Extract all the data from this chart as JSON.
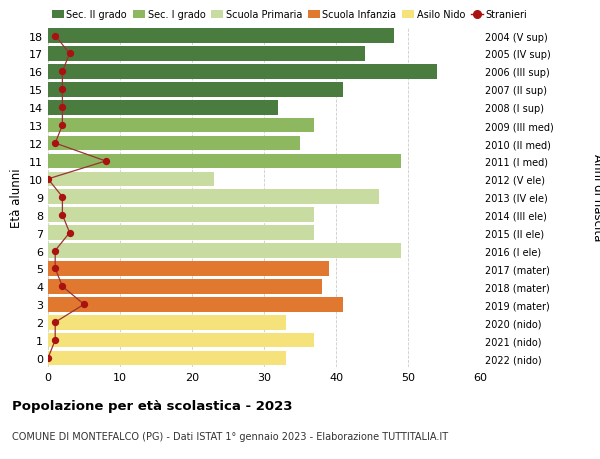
{
  "ages": [
    0,
    1,
    2,
    3,
    4,
    5,
    6,
    7,
    8,
    9,
    10,
    11,
    12,
    13,
    14,
    15,
    16,
    17,
    18
  ],
  "bar_values": [
    33,
    37,
    33,
    41,
    38,
    39,
    49,
    37,
    37,
    46,
    23,
    49,
    35,
    37,
    32,
    41,
    54,
    44,
    48
  ],
  "stranieri": [
    0,
    1,
    1,
    5,
    2,
    1,
    1,
    3,
    2,
    2,
    0,
    8,
    1,
    2,
    2,
    2,
    2,
    3,
    1
  ],
  "right_labels": [
    "2022 (nido)",
    "2021 (nido)",
    "2020 (nido)",
    "2019 (mater)",
    "2018 (mater)",
    "2017 (mater)",
    "2016 (I ele)",
    "2015 (II ele)",
    "2014 (III ele)",
    "2013 (IV ele)",
    "2012 (V ele)",
    "2011 (I med)",
    "2010 (II med)",
    "2009 (III med)",
    "2008 (I sup)",
    "2007 (II sup)",
    "2006 (III sup)",
    "2005 (IV sup)",
    "2004 (V sup)"
  ],
  "bar_colors": [
    "#f5e27a",
    "#f5e27a",
    "#f5e27a",
    "#e07830",
    "#e07830",
    "#e07830",
    "#c8dba0",
    "#c8dba0",
    "#c8dba0",
    "#c8dba0",
    "#c8dba0",
    "#8db860",
    "#8db860",
    "#8db860",
    "#4a7c3f",
    "#4a7c3f",
    "#4a7c3f",
    "#4a7c3f",
    "#4a7c3f"
  ],
  "legend_labels": [
    "Sec. II grado",
    "Sec. I grado",
    "Scuola Primaria",
    "Scuola Infanzia",
    "Asilo Nido",
    "Stranieri"
  ],
  "legend_colors": [
    "#4a7c3f",
    "#8db860",
    "#c8dba0",
    "#e07830",
    "#f5e27a",
    "#aa1111"
  ],
  "ylabel_left": "Età alunni",
  "ylabel_right": "Anni di nascita",
  "title": "Popolazione per età scolastica - 2023",
  "subtitle": "COMUNE DI MONTEFALCO (PG) - Dati ISTAT 1° gennaio 2023 - Elaborazione TUTTITALIA.IT",
  "xlim": [
    0,
    60
  ],
  "xticks": [
    0,
    10,
    20,
    30,
    40,
    50,
    60
  ],
  "stranieri_color": "#aa1111",
  "stranieri_line_color": "#993333",
  "bg_color": "#ffffff",
  "grid_color": "#cccccc"
}
